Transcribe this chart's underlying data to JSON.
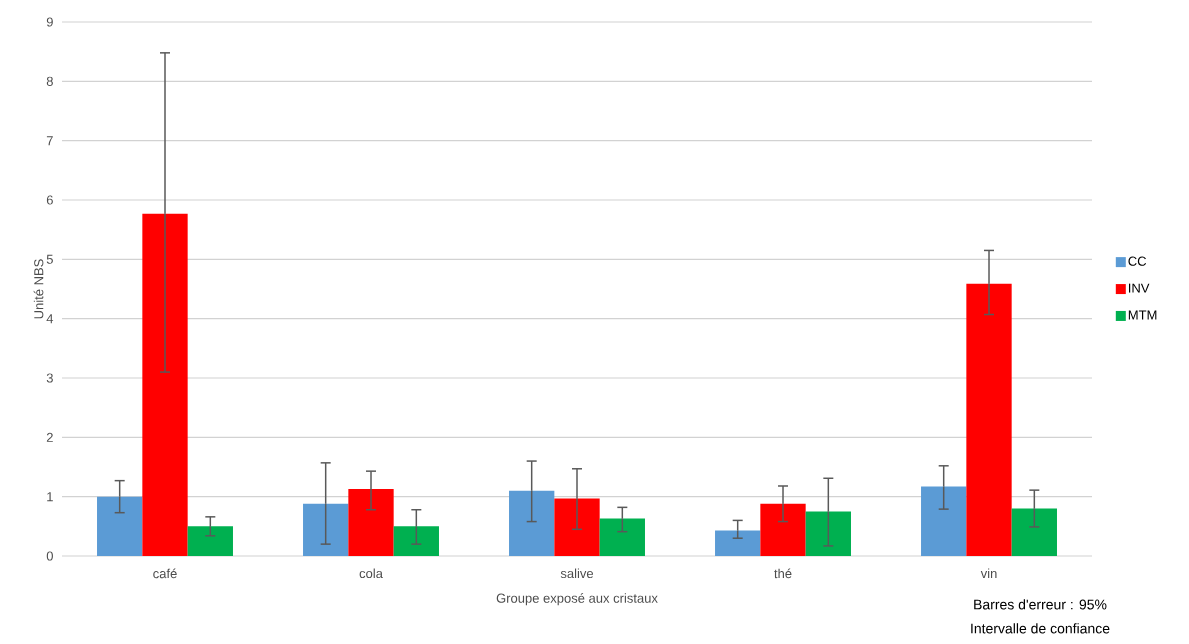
{
  "chart_data": {
    "type": "bar",
    "xlabel": "Groupe exposé aux cristaux",
    "ylabel": "Unité NBS",
    "categories": [
      "café",
      "cola",
      "salive",
      "thé",
      "vin"
    ],
    "series": [
      {
        "name": "CC",
        "color": "#5b9bd5",
        "values": [
          1.0,
          0.88,
          1.1,
          0.43,
          1.17
        ],
        "errors": [
          [
            0.73,
            1.27
          ],
          [
            0.2,
            1.57
          ],
          [
            0.58,
            1.6
          ],
          [
            0.3,
            0.6
          ],
          [
            0.79,
            1.52
          ]
        ]
      },
      {
        "name": "INV",
        "color": "#ff0000",
        "values": [
          5.77,
          1.13,
          0.97,
          0.88,
          4.59
        ],
        "errors": [
          [
            3.1,
            8.48
          ],
          [
            0.78,
            1.43
          ],
          [
            0.45,
            1.47
          ],
          [
            0.58,
            1.18
          ],
          [
            4.07,
            5.15
          ]
        ]
      },
      {
        "name": "MTM",
        "color": "#00b050",
        "values": [
          0.5,
          0.5,
          0.63,
          0.75,
          0.8
        ],
        "errors": [
          [
            0.34,
            0.66
          ],
          [
            0.2,
            0.78
          ],
          [
            0.41,
            0.82
          ],
          [
            0.17,
            1.31
          ],
          [
            0.49,
            1.11
          ]
        ]
      }
    ],
    "ylim": [
      0,
      9
    ],
    "yticks": [
      0,
      1,
      2,
      3,
      4,
      5,
      6,
      7,
      8,
      9
    ],
    "grid": "y",
    "legend": "right",
    "annotations": [
      "Barres d'erreur : 95%",
      "Intervalle de confiance"
    ]
  }
}
